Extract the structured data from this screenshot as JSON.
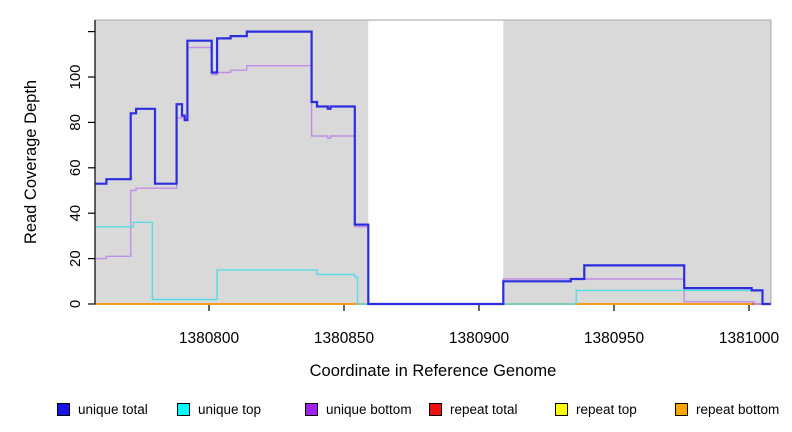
{
  "y_axis": {
    "label": "Read Coverage Depth",
    "tick_labels": [
      "0",
      "20",
      "40",
      "60",
      "80",
      "100"
    ],
    "tick_values": [
      0,
      20,
      40,
      60,
      80,
      100
    ],
    "unlabeled_tick_values": [
      120
    ]
  },
  "x_axis": {
    "label": "Coordinate in Reference Genome",
    "tick_labels": [
      "1380800",
      "1380850",
      "1380900",
      "1380950",
      "1381000"
    ],
    "tick_values": [
      1380800,
      1380850,
      1380900,
      1380950,
      1381000
    ]
  },
  "legend": [
    {
      "label": "unique total",
      "color": "#1414e6"
    },
    {
      "label": "unique top",
      "color": "#00ffff"
    },
    {
      "label": "unique bottom",
      "color": "#a020f0"
    },
    {
      "label": "repeat total",
      "color": "#ee1111"
    },
    {
      "label": "repeat top",
      "color": "#ffff00"
    },
    {
      "label": "repeat bottom",
      "color": "#ffa500"
    }
  ],
  "chart_data": {
    "type": "line",
    "line_style": "step-after",
    "title": "",
    "xlabel": "Coordinate in Reference Genome",
    "ylabel": "Read Coverage Depth",
    "xlim": [
      1380758,
      1381008
    ],
    "ylim": [
      0,
      125
    ],
    "grid": false,
    "panel_bg": "#d9d9d9",
    "panel_border": "#a8a8a8",
    "uncovered_region": {
      "x0": 1380859,
      "x1": 1380909,
      "color": "#ffffff"
    },
    "series": [
      {
        "name": "repeat top",
        "color": "#f0f000",
        "width": 1.4,
        "x_end": 1381008,
        "points": [
          [
            1380758,
            0
          ]
        ]
      },
      {
        "name": "repeat total",
        "color": "#e03030",
        "width": 1.4,
        "x_end": 1381008,
        "points": [
          [
            1380758,
            0
          ]
        ]
      },
      {
        "name": "repeat bottom",
        "color": "#ff9d1c",
        "width": 1.8,
        "x_end": 1381001,
        "points": [
          [
            1380758,
            0
          ]
        ]
      },
      {
        "name": "unique bottom",
        "color": "#c18ee8",
        "width": 1.4,
        "x_end": 1381008,
        "points": [
          [
            1380758,
            20
          ],
          [
            1380762,
            21
          ],
          [
            1380771,
            50
          ],
          [
            1380773,
            51
          ],
          [
            1380788,
            82
          ],
          [
            1380791,
            81
          ],
          [
            1380792,
            113
          ],
          [
            1380801,
            101
          ],
          [
            1380803,
            102
          ],
          [
            1380808,
            103
          ],
          [
            1380814,
            105
          ],
          [
            1380838,
            74
          ],
          [
            1380844,
            73
          ],
          [
            1380845,
            74
          ],
          [
            1380854,
            34
          ],
          [
            1380859,
            0
          ],
          [
            1380909,
            11
          ],
          [
            1380976,
            1
          ],
          [
            1381002,
            0
          ]
        ]
      },
      {
        "name": "unique top",
        "color": "#57dde6",
        "width": 1.4,
        "x_end": 1381008,
        "points": [
          [
            1380758,
            34
          ],
          [
            1380772,
            36
          ],
          [
            1380779,
            2
          ],
          [
            1380803,
            15
          ],
          [
            1380840,
            13
          ],
          [
            1380854,
            12
          ],
          [
            1380855,
            0
          ],
          [
            1380936,
            6
          ],
          [
            1381005,
            0
          ]
        ]
      },
      {
        "name": "unique total",
        "color": "#2d2de0",
        "width": 2.2,
        "x_end": 1381008,
        "points": [
          [
            1380758,
            53
          ],
          [
            1380762,
            55
          ],
          [
            1380771,
            84
          ],
          [
            1380773,
            86
          ],
          [
            1380780,
            53
          ],
          [
            1380788,
            88
          ],
          [
            1380790,
            83
          ],
          [
            1380791,
            81
          ],
          [
            1380792,
            116
          ],
          [
            1380801,
            102
          ],
          [
            1380803,
            117
          ],
          [
            1380808,
            118
          ],
          [
            1380814,
            120
          ],
          [
            1380838,
            89
          ],
          [
            1380840,
            87
          ],
          [
            1380844,
            86
          ],
          [
            1380845,
            87
          ],
          [
            1380854,
            35
          ],
          [
            1380859,
            0
          ],
          [
            1380909,
            10
          ],
          [
            1380934,
            11
          ],
          [
            1380939,
            17
          ],
          [
            1380976,
            7
          ],
          [
            1381001,
            6
          ],
          [
            1381005,
            0
          ]
        ]
      }
    ],
    "legend_position": "bottom"
  }
}
